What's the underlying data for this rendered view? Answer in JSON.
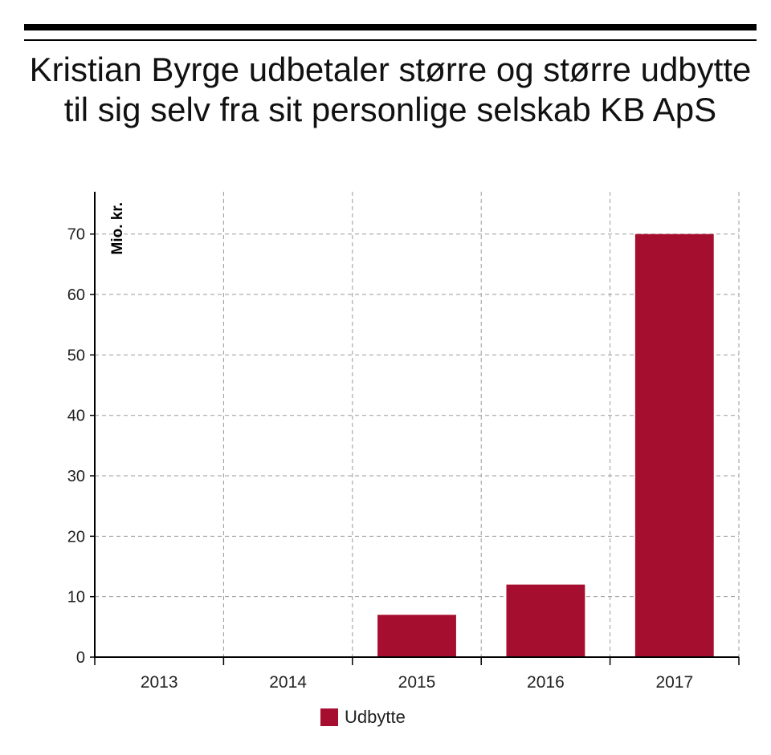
{
  "title": "Kristian Byrge udbetaler større og større udbytte til sig selv fra sit personlige selskab KB ApS",
  "colors": {
    "bar": "#a50e2e",
    "grid": "#9a9a9a",
    "axis": "#000000"
  },
  "chart_data": {
    "type": "bar",
    "title": "Kristian Byrge udbetaler større og større udbytte til sig selv fra sit personlige selskab KB ApS",
    "categories": [
      "2013",
      "2014",
      "2015",
      "2016",
      "2017"
    ],
    "series": [
      {
        "name": "Udbytte",
        "values": [
          0,
          0,
          7,
          12,
          70
        ]
      }
    ],
    "ylabel": "Mio. kr.",
    "xlabel": "",
    "ylim": [
      0,
      77
    ],
    "yticks": [
      0,
      10,
      20,
      30,
      40,
      50,
      60,
      70
    ],
    "grid": true,
    "legend": "bottom-center"
  }
}
